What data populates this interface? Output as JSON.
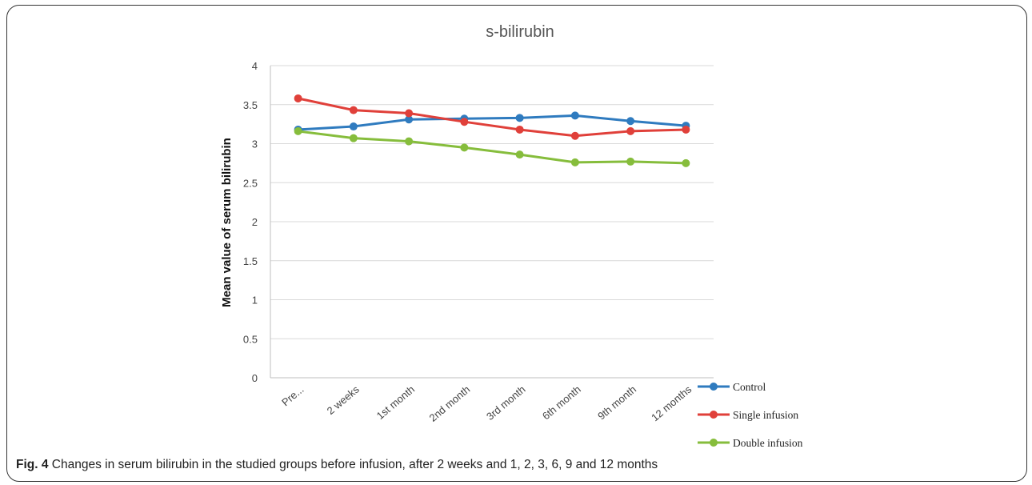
{
  "caption": {
    "label": "Fig. 4",
    "text": "Changes in serum bilirubin in the studied groups before infusion, after 2 weeks and 1, 2, 3, 6, 9 and 12 months"
  },
  "chart_data": {
    "type": "line",
    "title": "s-bilirubin",
    "xlabel": "",
    "ylabel": "Mean value of serum bilirubin",
    "categories": [
      "Pre...",
      "2 weeks",
      "1st month",
      "2nd month",
      "3rd month",
      "6th month",
      "9th month",
      "12 months"
    ],
    "ylim": [
      0,
      4
    ],
    "yticks": [
      "0",
      "0.5",
      "1",
      "1.5",
      "2",
      "2.5",
      "3",
      "3.5",
      "4"
    ],
    "grid": true,
    "legend_position": "bottom-right",
    "series": [
      {
        "name": "Control",
        "color": "#2f7bbf",
        "values": [
          3.18,
          3.22,
          3.31,
          3.32,
          3.33,
          3.36,
          3.29,
          3.23
        ]
      },
      {
        "name": "Single infusion",
        "color": "#e0403a",
        "values": [
          3.58,
          3.43,
          3.39,
          3.28,
          3.18,
          3.1,
          3.16,
          3.18
        ]
      },
      {
        "name": "Double infusion",
        "color": "#86bd3c",
        "values": [
          3.16,
          3.07,
          3.03,
          2.95,
          2.86,
          2.76,
          2.77,
          2.75
        ]
      }
    ]
  }
}
